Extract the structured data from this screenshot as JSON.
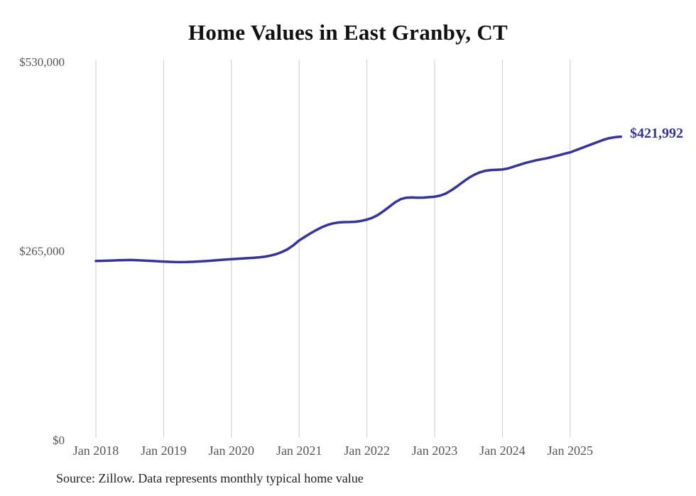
{
  "title": "Home Values in East Granby, CT",
  "source_note": "Source: Zillow. Data represents monthly typical home value",
  "end_label": "$421,992",
  "colors": {
    "line": "#34349c",
    "end_label_text": "#333399",
    "grid": "#cccccc",
    "axis_text": "#555555",
    "title_text": "#111111",
    "source_text": "#222222",
    "background": "#ffffff"
  },
  "chart_data": {
    "type": "line",
    "title": "Home Values in East Granby, CT",
    "xlabel": "",
    "ylabel": "",
    "x_unit": "month",
    "x_start": "2018-01",
    "x_end": "2025-10",
    "ylim": [
      0,
      530000
    ],
    "grid": "vertical-only",
    "legend": "none",
    "final_value": 421992,
    "y_ticks": [
      {
        "label": "$0",
        "value": 0
      },
      {
        "label": "$265,000",
        "value": 265000
      },
      {
        "label": "$530,000",
        "value": 530000
      }
    ],
    "x_ticks": [
      {
        "label": "Jan 2018",
        "month_index": 0
      },
      {
        "label": "Jan 2019",
        "month_index": 12
      },
      {
        "label": "Jan 2020",
        "month_index": 24
      },
      {
        "label": "Jan 2021",
        "month_index": 36
      },
      {
        "label": "Jan 2022",
        "month_index": 48
      },
      {
        "label": "Jan 2023",
        "month_index": 60
      },
      {
        "label": "Jan 2024",
        "month_index": 72
      },
      {
        "label": "Jan 2025",
        "month_index": 84
      }
    ],
    "series": [
      {
        "name": "Typical home value (USD)",
        "x": [
          "2018-01",
          "2018-02",
          "2018-03",
          "2018-04",
          "2018-05",
          "2018-06",
          "2018-07",
          "2018-08",
          "2018-09",
          "2018-10",
          "2018-11",
          "2018-12",
          "2019-01",
          "2019-02",
          "2019-03",
          "2019-04",
          "2019-05",
          "2019-06",
          "2019-07",
          "2019-08",
          "2019-09",
          "2019-10",
          "2019-11",
          "2019-12",
          "2020-01",
          "2020-02",
          "2020-03",
          "2020-04",
          "2020-05",
          "2020-06",
          "2020-07",
          "2020-08",
          "2020-09",
          "2020-10",
          "2020-11",
          "2020-12",
          "2021-01",
          "2021-02",
          "2021-03",
          "2021-04",
          "2021-05",
          "2021-06",
          "2021-07",
          "2021-08",
          "2021-09",
          "2021-10",
          "2021-11",
          "2021-12",
          "2022-01",
          "2022-02",
          "2022-03",
          "2022-04",
          "2022-05",
          "2022-06",
          "2022-07",
          "2022-08",
          "2022-09",
          "2022-10",
          "2022-11",
          "2022-12",
          "2023-01",
          "2023-02",
          "2023-03",
          "2023-04",
          "2023-05",
          "2023-06",
          "2023-07",
          "2023-08",
          "2023-09",
          "2023-10",
          "2023-11",
          "2023-12",
          "2024-01",
          "2024-02",
          "2024-03",
          "2024-04",
          "2024-05",
          "2024-06",
          "2024-07",
          "2024-08",
          "2024-09",
          "2024-10",
          "2024-11",
          "2024-12",
          "2025-01",
          "2025-02",
          "2025-03",
          "2025-04",
          "2025-05",
          "2025-06",
          "2025-07",
          "2025-08",
          "2025-09",
          "2025-10"
        ],
        "values": [
          247800,
          248000,
          248200,
          248500,
          248800,
          249000,
          249200,
          249000,
          248600,
          248200,
          247800,
          247400,
          247000,
          246600,
          246300,
          246200,
          246300,
          246600,
          247000,
          247500,
          248000,
          248600,
          249200,
          249800,
          250400,
          250900,
          251400,
          251800,
          252300,
          253000,
          254000,
          255500,
          257500,
          260500,
          264500,
          270000,
          276500,
          281500,
          286500,
          291000,
          295000,
          298200,
          300500,
          301800,
          302300,
          302400,
          302800,
          304000,
          305800,
          308500,
          312500,
          318000,
          324000,
          330000,
          334500,
          336500,
          336800,
          336500,
          336600,
          337200,
          337900,
          339500,
          342500,
          347000,
          352500,
          358500,
          364000,
          368500,
          372000,
          374300,
          375300,
          375600,
          376000,
          377500,
          380000,
          382500,
          385000,
          387000,
          389000,
          390500,
          392000,
          394000,
          396000,
          398000,
          400000,
          403000,
          406000,
          409000,
          412000,
          415000,
          417800,
          420000,
          421300,
          421992
        ]
      }
    ]
  }
}
